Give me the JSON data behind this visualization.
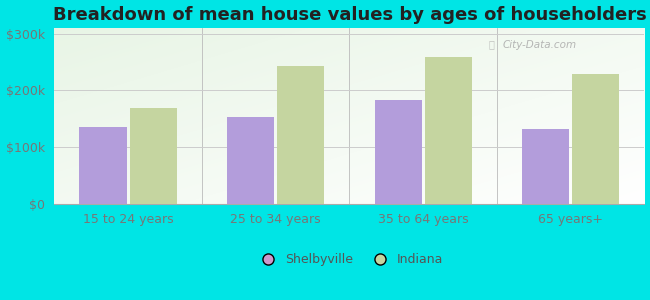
{
  "title": "Breakdown of mean house values by ages of householders",
  "categories": [
    "15 to 24 years",
    "25 to 34 years",
    "35 to 64 years",
    "65 years+"
  ],
  "shelbyville_values": [
    135000,
    152000,
    182000,
    132000
  ],
  "indiana_values": [
    168000,
    243000,
    258000,
    228000
  ],
  "shelbyville_color": "#b39ddb",
  "indiana_color": "#c5d5a0",
  "ylim": [
    0,
    310000
  ],
  "yticks": [
    0,
    100000,
    200000,
    300000
  ],
  "ytick_labels": [
    "$0",
    "$100k",
    "$200k",
    "$300k"
  ],
  "bar_width": 0.32,
  "fig_background": "#00e5e5",
  "title_fontsize": 13,
  "tick_fontsize": 9,
  "legend_labels": [
    "Shelbyville",
    "Indiana"
  ],
  "watermark": "City-Data.com",
  "legend_marker_shelbyville": "#cc99cc",
  "legend_marker_indiana": "#c5d5a0"
}
